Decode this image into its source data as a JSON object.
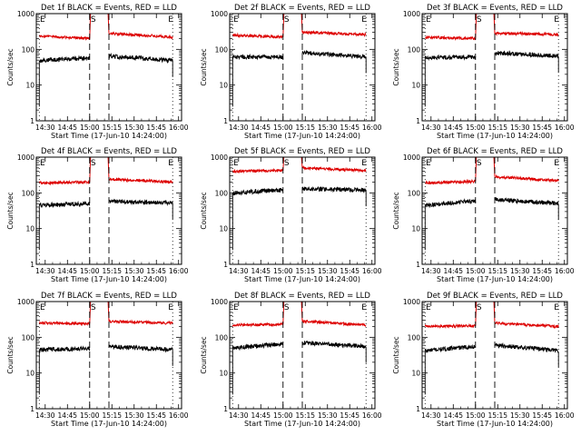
{
  "figure": {
    "ylabel": "Counts/sec",
    "xlabel": "Start Time (17-Jun-10 14:24:00)",
    "x_tick_labels": [
      "14:30",
      "14:45",
      "15:00",
      "15:15",
      "15:30",
      "15:45",
      "16:00"
    ],
    "y_tick_labels": [
      "1",
      "10",
      "100",
      "1000"
    ],
    "marker_labels": {
      "start": "S",
      "end": "E"
    },
    "colors": {
      "events": "#000000",
      "lld": "#dd0000"
    }
  },
  "chart_data": [
    {
      "type": "line",
      "title": "Det 1f BLACK = Events, RED = LLD",
      "xlim": [
        "14:24",
        "16:02"
      ],
      "ylim": [
        1,
        1000
      ],
      "yscale": "log",
      "series": [
        {
          "color": "black",
          "segments": [
            {
              "x": [
                "14:26",
                "15:00"
              ],
              "y": [
                48,
                58
              ]
            },
            {
              "x": [
                "15:13",
                "15:56"
              ],
              "y": [
                65,
                48
              ]
            }
          ]
        },
        {
          "color": "red",
          "segments": [
            {
              "x": [
                "14:26",
                "15:00"
              ],
              "y": [
                240,
                200
              ]
            },
            {
              "x": [
                "15:13",
                "15:56"
              ],
              "y": [
                280,
                220
              ]
            }
          ]
        }
      ]
    },
    {
      "type": "line",
      "title": "Det 2f BLACK = Events, RED = LLD",
      "xlim": [
        "14:24",
        "16:02"
      ],
      "ylim": [
        1,
        1000
      ],
      "yscale": "log",
      "series": [
        {
          "color": "black",
          "segments": [
            {
              "x": [
                "14:26",
                "15:00"
              ],
              "y": [
                62,
                60
              ]
            },
            {
              "x": [
                "15:13",
                "15:56"
              ],
              "y": [
                80,
                62
              ]
            }
          ]
        },
        {
          "color": "red",
          "segments": [
            {
              "x": [
                "14:26",
                "15:00"
              ],
              "y": [
                250,
                220
              ]
            },
            {
              "x": [
                "15:13",
                "15:56"
              ],
              "y": [
                300,
                260
              ]
            }
          ]
        }
      ]
    },
    {
      "type": "line",
      "title": "Det 3f BLACK = Events, RED = LLD",
      "xlim": [
        "14:24",
        "16:02"
      ],
      "ylim": [
        1,
        1000
      ],
      "yscale": "log",
      "series": [
        {
          "color": "black",
          "segments": [
            {
              "x": [
                "14:26",
                "15:00"
              ],
              "y": [
                58,
                62
              ]
            },
            {
              "x": [
                "15:13",
                "15:56"
              ],
              "y": [
                80,
                65
              ]
            }
          ]
        },
        {
          "color": "red",
          "segments": [
            {
              "x": [
                "14:26",
                "15:00"
              ],
              "y": [
                220,
                200
              ]
            },
            {
              "x": [
                "15:13",
                "15:56"
              ],
              "y": [
                280,
                260
              ]
            }
          ]
        }
      ]
    },
    {
      "type": "line",
      "title": "Det 4f BLACK = Events, RED = LLD",
      "xlim": [
        "14:24",
        "16:02"
      ],
      "ylim": [
        1,
        1000
      ],
      "yscale": "log",
      "series": [
        {
          "color": "black",
          "segments": [
            {
              "x": [
                "14:26",
                "15:00"
              ],
              "y": [
                45,
                50
              ]
            },
            {
              "x": [
                "15:13",
                "15:56"
              ],
              "y": [
                58,
                52
              ]
            }
          ]
        },
        {
          "color": "red",
          "segments": [
            {
              "x": [
                "14:26",
                "15:00"
              ],
              "y": [
                190,
                200
              ]
            },
            {
              "x": [
                "15:13",
                "15:56"
              ],
              "y": [
                240,
                200
              ]
            }
          ]
        }
      ]
    },
    {
      "type": "line",
      "title": "Det 5f BLACK = Events, RED = LLD",
      "xlim": [
        "14:24",
        "16:02"
      ],
      "ylim": [
        1,
        1000
      ],
      "yscale": "log",
      "series": [
        {
          "color": "black",
          "segments": [
            {
              "x": [
                "14:26",
                "15:00"
              ],
              "y": [
                100,
                120
              ]
            },
            {
              "x": [
                "15:13",
                "15:56"
              ],
              "y": [
                130,
                120
              ]
            }
          ]
        },
        {
          "color": "red",
          "segments": [
            {
              "x": [
                "14:26",
                "15:00"
              ],
              "y": [
                400,
                420
              ]
            },
            {
              "x": [
                "15:13",
                "15:56"
              ],
              "y": [
                500,
                420
              ]
            }
          ]
        }
      ]
    },
    {
      "type": "line",
      "title": "Det 6f BLACK = Events, RED = LLD",
      "xlim": [
        "14:24",
        "16:02"
      ],
      "ylim": [
        1,
        1000
      ],
      "yscale": "log",
      "series": [
        {
          "color": "black",
          "segments": [
            {
              "x": [
                "14:26",
                "15:00"
              ],
              "y": [
                45,
                60
              ]
            },
            {
              "x": [
                "15:13",
                "15:56"
              ],
              "y": [
                65,
                50
              ]
            }
          ]
        },
        {
          "color": "red",
          "segments": [
            {
              "x": [
                "14:26",
                "15:00"
              ],
              "y": [
                190,
                210
              ]
            },
            {
              "x": [
                "15:13",
                "15:56"
              ],
              "y": [
                280,
                220
              ]
            }
          ]
        }
      ]
    },
    {
      "type": "line",
      "title": "Det 7f BLACK = Events, RED = LLD",
      "xlim": [
        "14:24",
        "16:02"
      ],
      "ylim": [
        1,
        1000
      ],
      "yscale": "log",
      "series": [
        {
          "color": "black",
          "segments": [
            {
              "x": [
                "14:26",
                "15:00"
              ],
              "y": [
                45,
                48
              ]
            },
            {
              "x": [
                "15:13",
                "15:56"
              ],
              "y": [
                55,
                45
              ]
            }
          ]
        },
        {
          "color": "red",
          "segments": [
            {
              "x": [
                "14:26",
                "15:00"
              ],
              "y": [
                250,
                240
              ]
            },
            {
              "x": [
                "15:13",
                "15:56"
              ],
              "y": [
                280,
                250
              ]
            }
          ]
        }
      ]
    },
    {
      "type": "line",
      "title": "Det 8f BLACK = Events, RED = LLD",
      "xlim": [
        "14:24",
        "16:02"
      ],
      "ylim": [
        1,
        1000
      ],
      "yscale": "log",
      "series": [
        {
          "color": "black",
          "segments": [
            {
              "x": [
                "14:26",
                "15:00"
              ],
              "y": [
                50,
                65
              ]
            },
            {
              "x": [
                "15:13",
                "15:56"
              ],
              "y": [
                70,
                55
              ]
            }
          ]
        },
        {
          "color": "red",
          "segments": [
            {
              "x": [
                "14:26",
                "15:00"
              ],
              "y": [
                220,
                230
              ]
            },
            {
              "x": [
                "15:13",
                "15:56"
              ],
              "y": [
                280,
                220
              ]
            }
          ]
        }
      ]
    },
    {
      "type": "line",
      "title": "Det 9f BLACK = Events, RED = LLD",
      "xlim": [
        "14:24",
        "16:02"
      ],
      "ylim": [
        1,
        1000
      ],
      "yscale": "log",
      "series": [
        {
          "color": "black",
          "segments": [
            {
              "x": [
                "14:26",
                "15:00"
              ],
              "y": [
                42,
                55
              ]
            },
            {
              "x": [
                "15:13",
                "15:56"
              ],
              "y": [
                60,
                42
              ]
            }
          ]
        },
        {
          "color": "red",
          "segments": [
            {
              "x": [
                "14:26",
                "15:00"
              ],
              "y": [
                200,
                210
              ]
            },
            {
              "x": [
                "15:13",
                "15:56"
              ],
              "y": [
                250,
                200
              ]
            }
          ]
        }
      ]
    }
  ]
}
